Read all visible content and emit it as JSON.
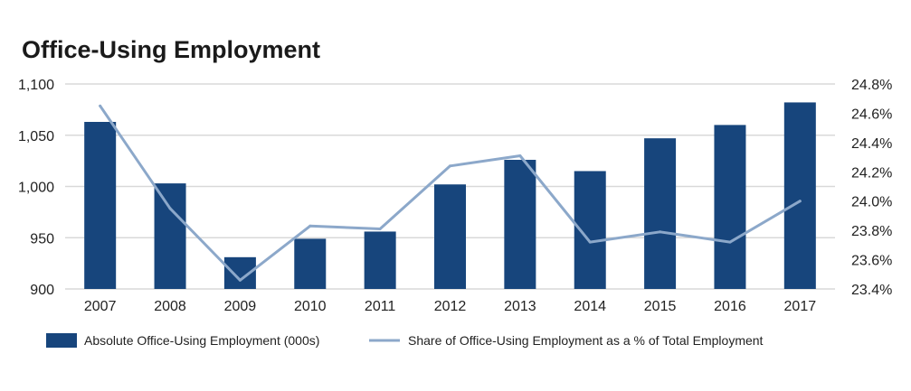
{
  "chart_data": {
    "type": "bar",
    "title": "Office-Using Employment",
    "categories": [
      "2007",
      "2008",
      "2009",
      "2010",
      "2011",
      "2012",
      "2013",
      "2014",
      "2015",
      "2016",
      "2017"
    ],
    "series": [
      {
        "name": "Absolute Office-Using Employment (000s)",
        "type": "bar",
        "axis": "left",
        "color": "#17457c",
        "values": [
          1063,
          1003,
          931,
          949,
          956,
          1002,
          1026,
          1015,
          1047,
          1060,
          1082
        ]
      },
      {
        "name": "Share of Office-Using Employment as a % of Total Employment",
        "type": "line",
        "axis": "right",
        "color": "#8ca8ca",
        "values": [
          24.65,
          23.95,
          23.46,
          23.83,
          23.81,
          24.24,
          24.31,
          23.72,
          23.79,
          23.72,
          24.0
        ]
      }
    ],
    "y_left": {
      "ylim": [
        900,
        1100
      ],
      "ticks": [
        900,
        950,
        1000,
        1050,
        1100
      ],
      "tick_labels": [
        "900",
        "950",
        "1,000",
        "1,050",
        "1,100"
      ]
    },
    "y_right": {
      "ylim": [
        23.4,
        24.8
      ],
      "ticks": [
        23.4,
        23.6,
        23.8,
        24.0,
        24.2,
        24.4,
        24.6,
        24.8
      ],
      "tick_labels": [
        "23.4%",
        "23.6%",
        "23.8%",
        "24.0%",
        "24.2%",
        "24.4%",
        "24.6%",
        "24.8%"
      ]
    },
    "grid": true,
    "gridline_color": "#d9d9d9",
    "legend_position": "bottom"
  }
}
